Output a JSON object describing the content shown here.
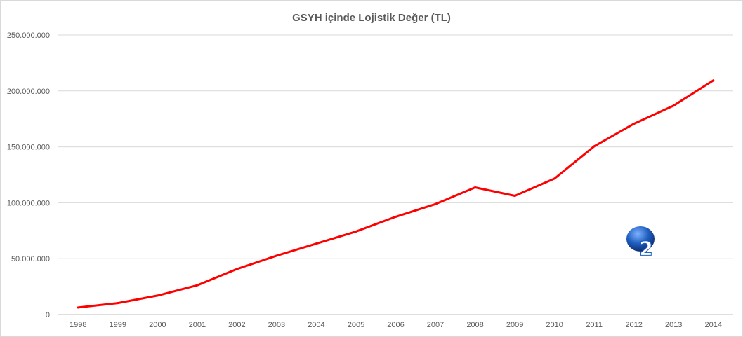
{
  "chart_data": {
    "type": "line",
    "title": "GSYH içinde Lojistik Değer (TL)",
    "xlabel": "",
    "ylabel": "",
    "categories": [
      "1998",
      "1999",
      "2000",
      "2001",
      "2002",
      "2003",
      "2004",
      "2005",
      "2006",
      "2007",
      "2008",
      "2009",
      "2010",
      "2011",
      "2012",
      "2013",
      "2014"
    ],
    "series": [
      {
        "values": [
          6300000,
          10300000,
          17000000,
          26200000,
          40700000,
          52700000,
          63500000,
          74300000,
          87500000,
          98800000,
          113700000,
          106200000,
          121600000,
          150500000,
          170700000,
          186900000,
          209400000
        ],
        "color": "#ff0000"
      }
    ],
    "ylim": [
      0,
      250000000
    ],
    "y_ticks": [
      0,
      50000000,
      100000000,
      150000000,
      200000000,
      250000000
    ],
    "y_tick_labels": [
      "0",
      "50.000.000",
      "100.000.000",
      "150.000.000",
      "200.000.000",
      "250.000.000"
    ],
    "grid": true,
    "legend": "none"
  },
  "watermark": {
    "glyph": "2",
    "color": "#1f5fbf"
  }
}
